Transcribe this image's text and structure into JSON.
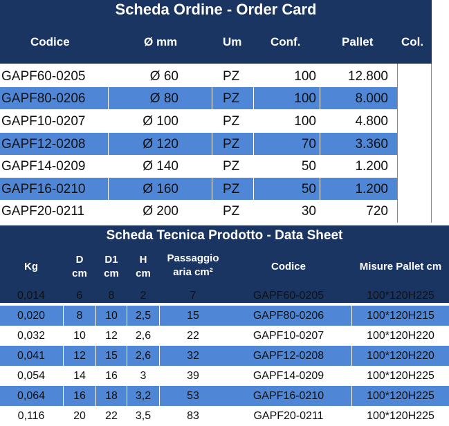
{
  "order_card": {
    "title": "Scheda Ordine - Order Card",
    "headers": {
      "codice": "Codice",
      "diam": "Ø mm",
      "um": "Um",
      "conf": "Conf.",
      "pallet": "Pallet",
      "col": "Col."
    },
    "rows": [
      {
        "codice": "GAPF60-0205",
        "diam": "Ø 60",
        "um": "PZ",
        "conf": "100",
        "pallet": "12.800"
      },
      {
        "codice": "GAPF80-0206",
        "diam": "Ø 80",
        "um": "PZ",
        "conf": "100",
        "pallet": "8.000"
      },
      {
        "codice": "GAPF10-0207",
        "diam": "Ø 100",
        "um": "PZ",
        "conf": "100",
        "pallet": "4.800"
      },
      {
        "codice": "GAPF12-0208",
        "diam": "Ø 120",
        "um": "PZ",
        "conf": "70",
        "pallet": "3.360"
      },
      {
        "codice": "GAPF14-0209",
        "diam": "Ø 140",
        "um": "PZ",
        "conf": "50",
        "pallet": "1.200"
      },
      {
        "codice": "GAPF16-0210",
        "diam": "Ø 160",
        "um": "PZ",
        "conf": "50",
        "pallet": "1.200"
      },
      {
        "codice": "GAPF20-0211",
        "diam": "Ø 200",
        "um": "PZ",
        "conf": "30",
        "pallet": "720"
      }
    ]
  },
  "data_sheet": {
    "title": "Scheda Tecnica Prodotto - Data Sheet",
    "headers": {
      "kg": "Kg",
      "d_line1": "D",
      "d_line2": "cm",
      "d1_line1": "D1",
      "d1_line2": "cm",
      "h_line1": "H",
      "h_line2": "cm",
      "passaggio_line1": "Passaggio",
      "passaggio_line2": "aria cm²",
      "codice": "Codice",
      "misure": "Misure Pallet cm"
    },
    "rows": [
      {
        "kg": "0,014",
        "d": "6",
        "d1": "8",
        "h": "2",
        "passaggio": "7",
        "codice": "GAPF60-0205",
        "misure": "100*120H225"
      },
      {
        "kg": "0,020",
        "d": "8",
        "d1": "10",
        "h": "2,5",
        "passaggio": "15",
        "codice": "GAPF80-0206",
        "misure": "100*120H215"
      },
      {
        "kg": "0,032",
        "d": "10",
        "d1": "12",
        "h": "2,6",
        "passaggio": "22",
        "codice": "GAPF10-0207",
        "misure": "100*120H220"
      },
      {
        "kg": "0,041",
        "d": "12",
        "d1": "15",
        "h": "2,6",
        "passaggio": "32",
        "codice": "GAPF12-0208",
        "misure": "100*120H220"
      },
      {
        "kg": "0,054",
        "d": "14",
        "d1": "16",
        "h": "3",
        "passaggio": "39",
        "codice": "GAPF14-0209",
        "misure": "100*120H225"
      },
      {
        "kg": "0,064",
        "d": "16",
        "d1": "18",
        "h": "3,2",
        "passaggio": "53",
        "codice": "GAPF16-0210",
        "misure": "100*120H225"
      },
      {
        "kg": "0,116",
        "d": "20",
        "d1": "22",
        "h": "3,5",
        "passaggio": "83",
        "codice": "GAPF20-0211",
        "misure": "100*120H225"
      }
    ]
  },
  "colors": {
    "header_navy": "#1a3561",
    "row_blue": "#4f86d6",
    "row_white": "#ffffff"
  }
}
